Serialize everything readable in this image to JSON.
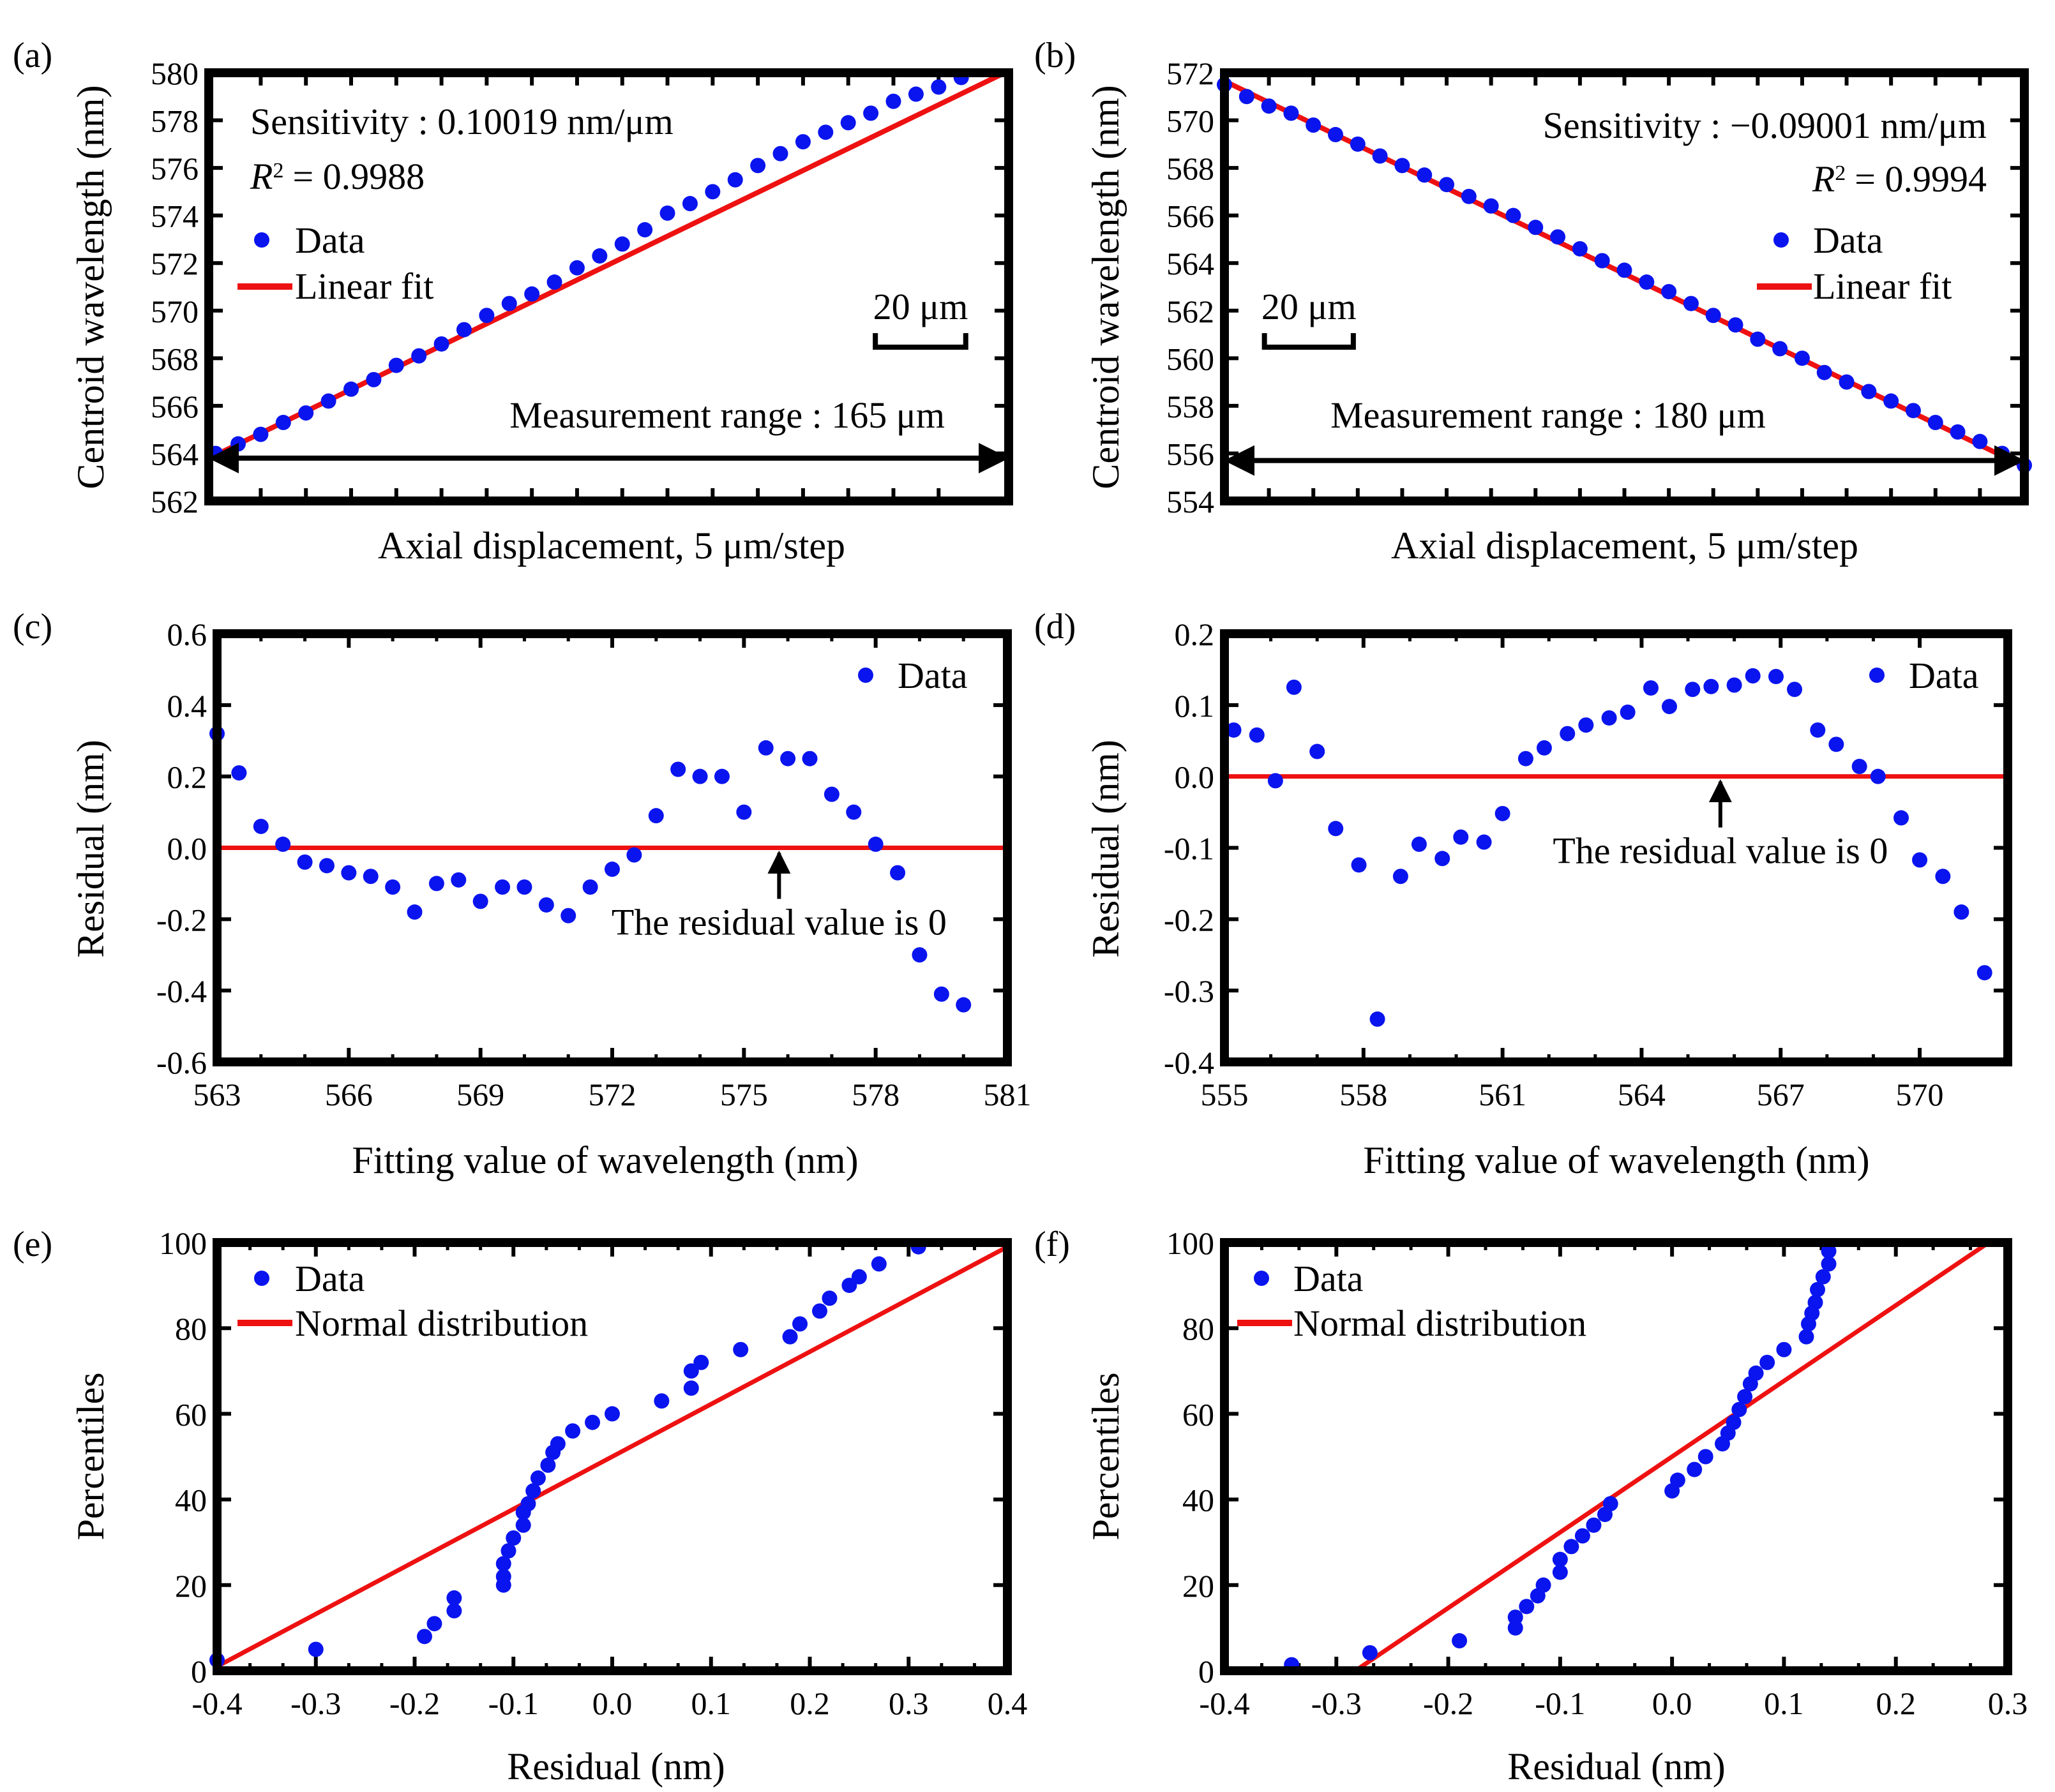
{
  "colors": {
    "data": "#0a14ee",
    "fit": "#ee1111",
    "axis": "#000000",
    "guide": "#a0a0a0"
  },
  "chart_data": [
    {
      "panel": "(a)",
      "type": "scatter",
      "xlabel": "Axial displacement, 5 μm/step",
      "ylabel": "Centroid wavelength (nm)",
      "ylim": [
        562,
        580
      ],
      "yticks": [
        562,
        564,
        566,
        568,
        570,
        572,
        574,
        576,
        578,
        580
      ],
      "x": [
        0,
        1,
        2,
        3,
        4,
        5,
        6,
        7,
        8,
        9,
        10,
        11,
        12,
        13,
        14,
        15,
        16,
        17,
        18,
        19,
        20,
        21,
        22,
        23,
        24,
        25,
        26,
        27,
        28,
        29,
        30,
        31,
        32,
        33
      ],
      "xlim": [
        -0.3,
        35.1
      ],
      "series": [
        {
          "name": "Data",
          "values": [
            564.0,
            564.4,
            564.8,
            565.3,
            565.7,
            566.2,
            566.7,
            567.1,
            567.7,
            568.1,
            568.6,
            569.2,
            569.8,
            570.3,
            570.7,
            571.2,
            571.8,
            572.3,
            572.8,
            573.4,
            574.1,
            574.5,
            575.0,
            575.5,
            576.1,
            576.6,
            577.1,
            577.5,
            577.9,
            578.3,
            578.8,
            579.1,
            579.4,
            579.8
          ]
        },
        {
          "name": "Linear fit",
          "line": [
            [
              -0.3,
              563.79
            ],
            [
              35.1,
              580.08
            ]
          ]
        }
      ],
      "scale_bar": {
        "label": "20 μm",
        "steps": 4,
        "x_start": 29.2
      },
      "range_arrow": {
        "label": "Measurement range : 165 μm",
        "from": -0.3,
        "to": 35.1,
        "y": 563.8
      },
      "guide_line": {
        "x": 35.1,
        "y_from": 563.8,
        "y_to": 580
      },
      "annotations": [
        "Sensitivity : 0.10019 nm/μm",
        "R² = 0.9988"
      ],
      "annot_main": "Sensitivity : 0.10019 nm/μm",
      "r2_value": "= 0.9988",
      "legend": [
        "Data",
        "Linear fit"
      ]
    },
    {
      "panel": "(b)",
      "type": "scatter",
      "xlabel": "Axial displacement, 5 μm/step",
      "ylabel": "Centroid wavelength (nm)",
      "ylim": [
        554,
        572
      ],
      "yticks": [
        554,
        556,
        558,
        560,
        562,
        564,
        566,
        568,
        570,
        572
      ],
      "x": [
        0,
        1,
        2,
        3,
        4,
        5,
        6,
        7,
        8,
        9,
        10,
        11,
        12,
        13,
        14,
        15,
        16,
        17,
        18,
        19,
        20,
        21,
        22,
        23,
        24,
        25,
        26,
        27,
        28,
        29,
        30,
        31,
        32,
        33,
        34,
        35,
        36
      ],
      "xlim": [
        0,
        36
      ],
      "series": [
        {
          "name": "Data",
          "values": [
            571.5,
            571.0,
            570.6,
            570.3,
            569.8,
            569.4,
            569.0,
            568.5,
            568.1,
            567.7,
            567.3,
            566.8,
            566.4,
            566.0,
            565.5,
            565.1,
            564.6,
            564.1,
            563.7,
            563.2,
            562.8,
            562.3,
            561.8,
            561.4,
            560.8,
            560.4,
            560.0,
            559.4,
            559.0,
            558.6,
            558.2,
            557.8,
            557.3,
            556.9,
            556.5,
            556.0,
            555.5
          ]
        },
        {
          "name": "Linear fit",
          "line": [
            [
              0,
              571.65
            ],
            [
              36,
              555.45
            ]
          ]
        }
      ],
      "scale_bar": {
        "label": "20 μm",
        "steps": 4,
        "x_start": 1.8
      },
      "range_arrow": {
        "label": "Measurement range : 180 μm",
        "from": 0,
        "to": 36,
        "y": 555.7
      },
      "annotations": [
        "Sensitivity : −0.09001 nm/μm",
        "R² = 0.9994"
      ],
      "annot_main": "Sensitivity : −0.09001 nm/μm",
      "r2_value": "= 0.9994",
      "legend": [
        "Data",
        "Linear fit"
      ]
    },
    {
      "panel": "(c)",
      "type": "scatter",
      "xlabel": "Fitting value of wavelength (nm)",
      "ylabel": "Residual (nm)",
      "xlim": [
        563,
        581
      ],
      "ylim": [
        -0.6,
        0.6
      ],
      "xticks": [
        563,
        566,
        569,
        572,
        575,
        578,
        581
      ],
      "yticks": [
        -0.6,
        -0.4,
        -0.2,
        0.0,
        0.2,
        0.4,
        0.6
      ],
      "ytick_labels": [
        "-0.6",
        "-0.4",
        "-0.2",
        "0.0",
        "0.2",
        "0.4",
        "0.6"
      ],
      "series": [
        {
          "name": "Data",
          "x": [
            563.0,
            563.5,
            564.0,
            564.5,
            565.0,
            565.5,
            566.0,
            566.5,
            567.0,
            567.5,
            568.0,
            568.5,
            569.0,
            569.5,
            570.0,
            570.5,
            571.0,
            571.5,
            572.0,
            572.5,
            573.0,
            573.5,
            574.0,
            574.5,
            575.0,
            575.5,
            576.0,
            576.5,
            577.0,
            577.5,
            578.0,
            578.5,
            579.0,
            579.5,
            580.0
          ],
          "y": [
            0.32,
            0.21,
            0.06,
            0.01,
            -0.04,
            -0.05,
            -0.07,
            -0.08,
            -0.11,
            -0.18,
            -0.1,
            -0.09,
            -0.15,
            -0.11,
            -0.11,
            -0.16,
            -0.19,
            -0.11,
            -0.06,
            -0.02,
            0.09,
            0.22,
            0.2,
            0.2,
            0.1,
            0.28,
            0.25,
            0.25,
            0.15,
            0.1,
            0.01,
            -0.07,
            -0.3,
            -0.41,
            -0.44
          ]
        },
        {
          "name": "Zero line",
          "y": 0.0
        }
      ],
      "zero_note": {
        "text": "The residual value is 0",
        "x": 575.8
      },
      "legend": [
        "Data"
      ]
    },
    {
      "panel": "(d)",
      "type": "scatter",
      "xlabel": "Fitting value of wavelength (nm)",
      "ylabel": "Residual (nm)",
      "xlim": [
        555,
        571.9
      ],
      "ylim": [
        -0.4,
        0.2
      ],
      "xticks": [
        555,
        558,
        561,
        564,
        567,
        570
      ],
      "yticks": [
        -0.4,
        -0.3,
        -0.2,
        -0.1,
        0.0,
        0.1,
        0.2
      ],
      "ytick_labels": [
        "-0.4",
        "-0.3",
        "-0.2",
        "-0.1",
        "0.0",
        "0.1",
        "0.2"
      ],
      "series": [
        {
          "name": "Data",
          "x": [
            555.2,
            555.7,
            556.1,
            556.5,
            557.0,
            557.4,
            557.9,
            558.3,
            558.8,
            559.2,
            559.7,
            560.1,
            560.6,
            561.0,
            561.5,
            561.9,
            562.4,
            562.8,
            563.3,
            563.7,
            564.2,
            564.6,
            565.1,
            565.5,
            566.0,
            566.4,
            566.9,
            567.3,
            567.8,
            568.2,
            568.7,
            569.1,
            569.6,
            570.0,
            570.5,
            570.9,
            571.4
          ],
          "y": [
            0.065,
            0.058,
            -0.006,
            0.125,
            0.035,
            -0.073,
            -0.124,
            -0.34,
            -0.14,
            -0.095,
            -0.115,
            -0.085,
            -0.092,
            -0.052,
            0.025,
            0.04,
            0.06,
            0.072,
            0.082,
            0.09,
            0.124,
            0.098,
            0.122,
            0.126,
            0.128,
            0.141,
            0.14,
            0.122,
            0.065,
            0.045,
            0.014,
            0.0,
            -0.058,
            -0.117,
            -0.14,
            -0.19,
            -0.275
          ]
        },
        {
          "name": "Zero line",
          "y": 0.0
        }
      ],
      "zero_note": {
        "text": "The residual value is 0",
        "x": 565.7
      },
      "legend": [
        "Data"
      ]
    },
    {
      "panel": "(e)",
      "type": "scatter",
      "xlabel": "Residual (nm)",
      "ylabel": "Percentiles",
      "xlim": [
        -0.4,
        0.4
      ],
      "ylim": [
        0,
        100
      ],
      "xticks": [
        -0.4,
        -0.3,
        -0.2,
        -0.1,
        0.0,
        0.1,
        0.2,
        0.3,
        0.4
      ],
      "xtick_labels": [
        "-0.4",
        "-0.3",
        "-0.2",
        "-0.1",
        "0.0",
        "0.1",
        "0.2",
        "0.3",
        "0.4"
      ],
      "yticks": [
        0,
        20,
        40,
        60,
        80,
        100
      ],
      "series": [
        {
          "name": "Data",
          "x": [
            -0.4,
            -0.3,
            -0.19,
            -0.18,
            -0.16,
            -0.16,
            -0.11,
            -0.11,
            -0.11,
            -0.105,
            -0.1,
            -0.09,
            -0.09,
            -0.085,
            -0.08,
            -0.075,
            -0.065,
            -0.06,
            -0.055,
            -0.04,
            -0.02,
            0.0,
            0.05,
            0.08,
            0.08,
            0.09,
            0.13,
            0.18,
            0.19,
            0.21,
            0.22,
            0.24,
            0.25,
            0.27,
            0.31
          ],
          "y": [
            2.5,
            5,
            8,
            11,
            14,
            17,
            20,
            22,
            25,
            28,
            31,
            34,
            37,
            39,
            42,
            45,
            48,
            51,
            53,
            56,
            58,
            60,
            63,
            66,
            70,
            72,
            75,
            78,
            81,
            84,
            87,
            90,
            92,
            95,
            99
          ]
        },
        {
          "name": "Normal distribution",
          "line": [
            [
              -0.4,
              1.0
            ],
            [
              0.4,
              99.0
            ]
          ]
        }
      ],
      "legend": [
        "Data",
        "Normal distribution"
      ]
    },
    {
      "panel": "(f)",
      "type": "scatter",
      "xlabel": "Residual (nm)",
      "ylabel": "Percentiles",
      "xlim": [
        -0.4,
        0.3
      ],
      "ylim": [
        0,
        100
      ],
      "xticks": [
        -0.4,
        -0.3,
        -0.2,
        -0.1,
        0.0,
        0.1,
        0.2,
        0.3
      ],
      "xtick_labels": [
        "-0.4",
        "-0.3",
        "-0.2",
        "-0.1",
        "0.0",
        "0.1",
        "0.2",
        "0.3"
      ],
      "yticks": [
        0,
        20,
        40,
        60,
        80,
        100
      ],
      "series": [
        {
          "name": "Data",
          "x": [
            -0.34,
            -0.27,
            -0.19,
            -0.14,
            -0.14,
            -0.13,
            -0.12,
            -0.115,
            -0.1,
            -0.1,
            -0.09,
            -0.08,
            -0.07,
            -0.06,
            -0.055,
            0.0,
            0.005,
            0.02,
            0.03,
            0.045,
            0.05,
            0.055,
            0.06,
            0.065,
            0.07,
            0.075,
            0.085,
            0.1,
            0.12,
            0.122,
            0.125,
            0.128,
            0.13,
            0.135,
            0.14,
            0.14
          ],
          "y": [
            1.4,
            4.2,
            7,
            10,
            12.5,
            15,
            17.5,
            20,
            23,
            26,
            29,
            31.5,
            34,
            36.5,
            39,
            42,
            44.5,
            47,
            50,
            53,
            55.5,
            58,
            61,
            64,
            67,
            69.5,
            72,
            75,
            78,
            81,
            83.5,
            86,
            89,
            92,
            95,
            98
          ]
        },
        {
          "name": "Normal distribution",
          "line": [
            [
              -0.283,
              0.0
            ],
            [
              0.283,
              100.0
            ]
          ]
        }
      ],
      "legend": [
        "Data",
        "Normal distribution"
      ]
    }
  ]
}
